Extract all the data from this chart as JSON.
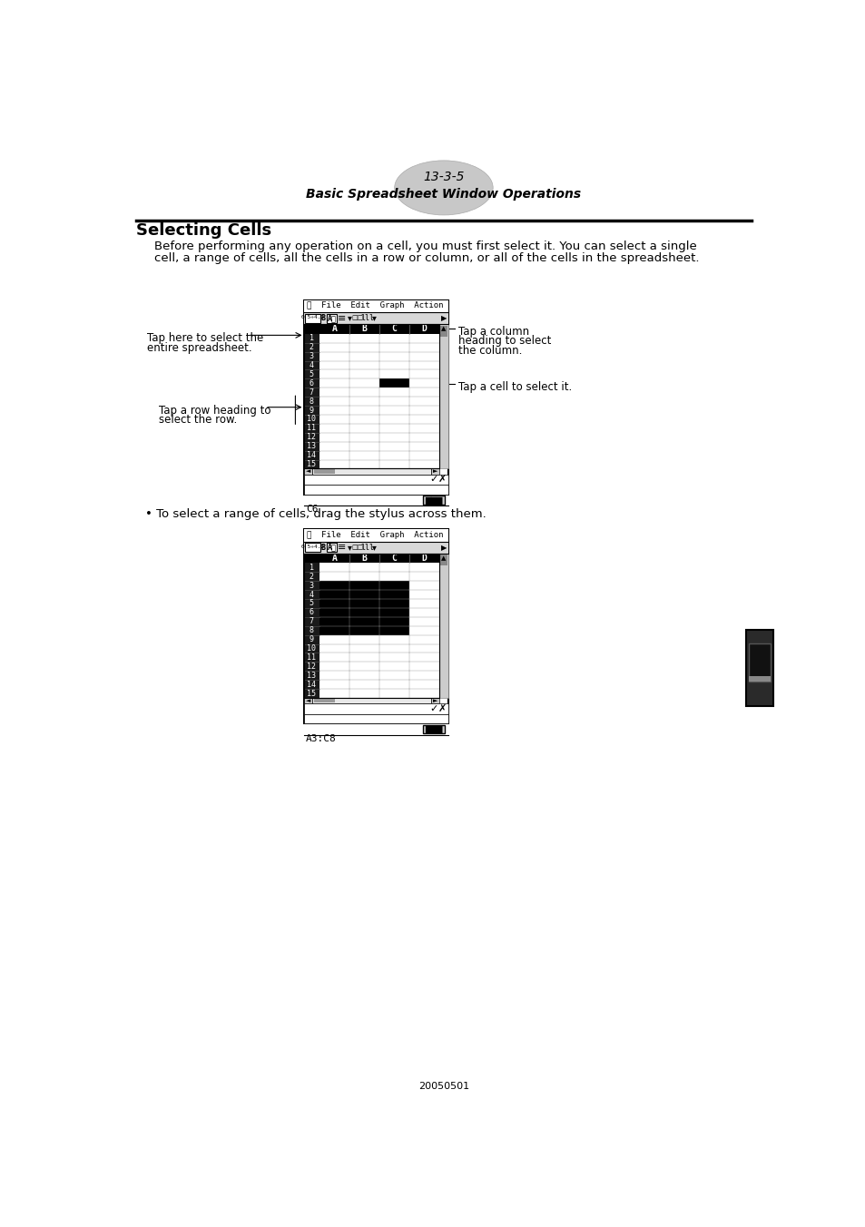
{
  "page_number": "13-3-5",
  "page_subtitle": "Basic Spreadsheet Window Operations",
  "section_title": "Selecting Cells",
  "body_text_line1": "Before performing any operation on a cell, you must first select it. You can select a single",
  "body_text_line2": "cell, a range of cells, all the cells in a row or column, or all of the cells in the spreadsheet.",
  "bullet_text": "• To select a range of cells, drag the stylus across them.",
  "label1_line1": "Tap here to select the",
  "label1_line2": "entire spreadsheet.",
  "label2_line1": "Tap a row heading to",
  "label2_line2": "select the row.",
  "label3_line1": "Tap a column",
  "label3_line2": "heading to select",
  "label3_line3": "the column.",
  "label4": "Tap a cell to select it.",
  "cell_ref1": "C6",
  "cell_ref2": "A3:C8",
  "footer": "20050501",
  "col_labels": [
    "A",
    "B",
    "C",
    "D"
  ],
  "num_rows": 15,
  "ss1_highlight_cell": [
    6,
    3
  ],
  "ss2_highlight_range": [
    3,
    1,
    8,
    3
  ]
}
